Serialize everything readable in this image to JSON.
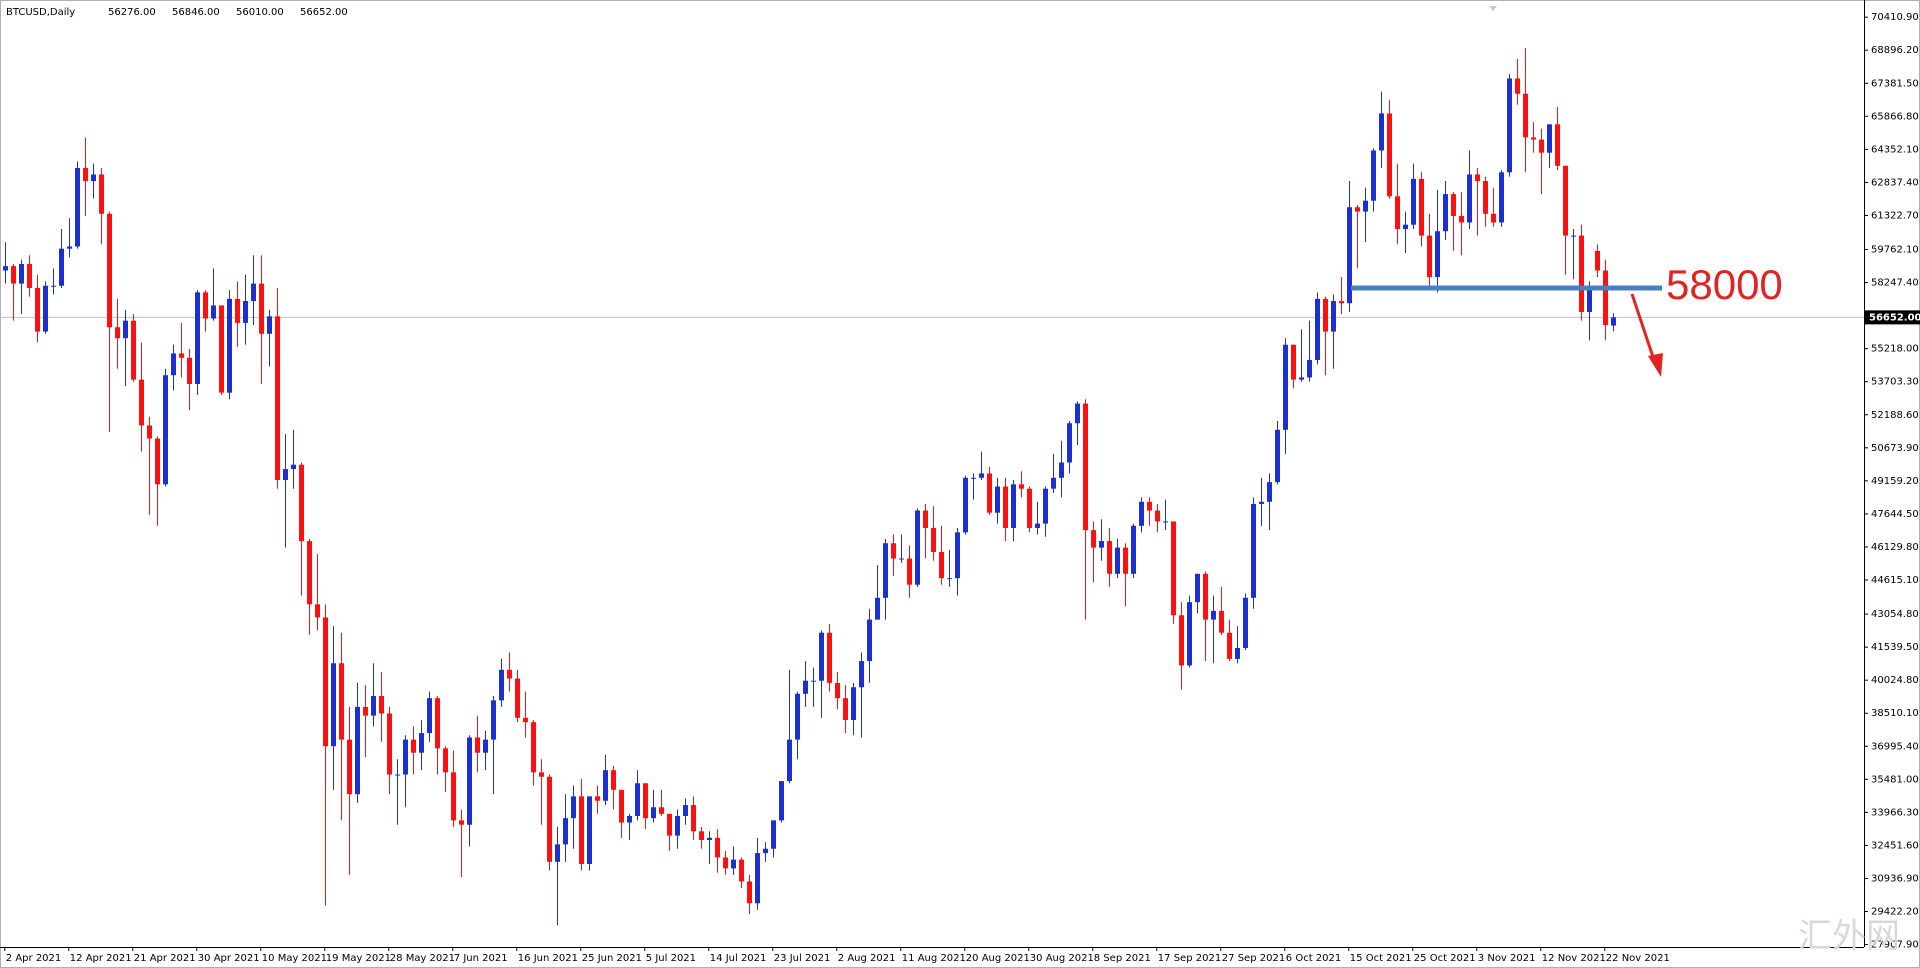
{
  "chart_data": {
    "type": "candlestick",
    "header": {
      "symbol": "BTCUSD,Daily",
      "ohlc": [
        {
          "value": 56276,
          "label": "56276.00"
        },
        {
          "value": 56846,
          "label": "56846.00"
        },
        {
          "value": 56010,
          "label": "56010.00"
        },
        {
          "value": 56652,
          "label": "56652.00"
        }
      ]
    },
    "up_color": "#1c2fd0",
    "down_color": "#ff1010",
    "xlim": [
      -0.6,
      232.4
    ],
    "xticks": [
      {
        "value": 0,
        "label": "2 Apr 2021"
      },
      {
        "value": 8,
        "label": "12 Apr 2021"
      },
      {
        "value": 16,
        "label": "21 Apr 2021"
      },
      {
        "value": 24,
        "label": "30 Apr 2021"
      },
      {
        "value": 32,
        "label": "10 May 2021"
      },
      {
        "value": 40,
        "label": "19 May 2021"
      },
      {
        "value": 48,
        "label": "28 May 2021"
      },
      {
        "value": 56,
        "label": "7 Jun 2021"
      },
      {
        "value": 64,
        "label": "16 Jun 2021"
      },
      {
        "value": 72,
        "label": "25 Jun 2021"
      },
      {
        "value": 80,
        "label": "5 Jul 2021"
      },
      {
        "value": 88,
        "label": "14 Jul 2021"
      },
      {
        "value": 96,
        "label": "23 Jul 2021"
      },
      {
        "value": 104,
        "label": "2 Aug 2021"
      },
      {
        "value": 112,
        "label": "11 Aug 2021"
      },
      {
        "value": 120,
        "label": "20 Aug 2021"
      },
      {
        "value": 128,
        "label": "30 Aug 2021"
      },
      {
        "value": 136,
        "label": "8 Sep 2021"
      },
      {
        "value": 144,
        "label": "17 Sep 2021"
      },
      {
        "value": 152,
        "label": "27 Sep 2021"
      },
      {
        "value": 160,
        "label": "6 Oct 2021"
      },
      {
        "value": 168,
        "label": "15 Oct 2021"
      },
      {
        "value": 176,
        "label": "25 Oct 2021"
      },
      {
        "value": 184,
        "label": "3 Nov 2021"
      },
      {
        "value": 192,
        "label": "12 Nov 2021"
      },
      {
        "value": 200,
        "label": "22 Nov 2021"
      }
    ],
    "ylim": [
      27796,
      71197
    ],
    "yticks": [
      {
        "value": 70410.9,
        "label": "70410.90"
      },
      {
        "value": 68896.2,
        "label": "68896.20"
      },
      {
        "value": 67381.5,
        "label": "67381.50"
      },
      {
        "value": 65866.8,
        "label": "65866.80"
      },
      {
        "value": 64352.1,
        "label": "64352.10"
      },
      {
        "value": 62837.4,
        "label": "62837.40"
      },
      {
        "value": 61322.7,
        "label": "61322.70"
      },
      {
        "value": 59762.1,
        "label": "59762.10"
      },
      {
        "value": 58247.4,
        "label": "58247.40"
      },
      {
        "value": 55218,
        "label": "55218.00"
      },
      {
        "value": 53703.3,
        "label": "53703.30"
      },
      {
        "value": 52188.6,
        "label": "52188.60"
      },
      {
        "value": 50673.9,
        "label": "50673.90"
      },
      {
        "value": 49159.2,
        "label": "49159.20"
      },
      {
        "value": 47644.5,
        "label": "47644.50"
      },
      {
        "value": 46129.8,
        "label": "46129.80"
      },
      {
        "value": 44615.1,
        "label": "44615.10"
      },
      {
        "value": 43054.8,
        "label": "43054.80"
      },
      {
        "value": 41539.5,
        "label": "41539.50"
      },
      {
        "value": 40024.8,
        "label": "40024.80"
      },
      {
        "value": 38510.1,
        "label": "38510.10"
      },
      {
        "value": 36995.4,
        "label": "36995.40"
      },
      {
        "value": 35481,
        "label": "35481.00"
      },
      {
        "value": 33966.3,
        "label": "33966.30"
      },
      {
        "value": 32451.6,
        "label": "32451.60"
      },
      {
        "value": 30936.9,
        "label": "30936.90"
      },
      {
        "value": 29422.2,
        "label": "29422.20"
      },
      {
        "value": 27907.9,
        "label": "27907.90"
      }
    ],
    "current_price": {
      "value": 56652,
      "label": "56652.00"
    },
    "annotation": {
      "level": 58000,
      "line_color": "#4a7fc0",
      "text_color": "#e32222"
    },
    "watermark": "汇外网",
    "candles": [
      [
        58800,
        60100,
        58200,
        59000
      ],
      [
        59000,
        59100,
        56500,
        58200
      ],
      [
        58200,
        59300,
        56800,
        59100
      ],
      [
        59100,
        59500,
        57600,
        58000
      ],
      [
        58000,
        58600,
        55500,
        56000
      ],
      [
        56000,
        58300,
        55900,
        58100
      ],
      [
        58100,
        58900,
        57700,
        58100
      ],
      [
        58100,
        60700,
        58000,
        59800
      ],
      [
        59800,
        61200,
        59400,
        59900
      ],
      [
        59900,
        63800,
        59800,
        63500
      ],
      [
        63500,
        64900,
        61300,
        62900
      ],
      [
        62900,
        63700,
        62100,
        63200
      ],
      [
        63200,
        63500,
        60000,
        61400
      ],
      [
        61400,
        61500,
        51400,
        56200
      ],
      [
        56200,
        57500,
        54300,
        55700
      ],
      [
        55700,
        57000,
        53500,
        56500
      ],
      [
        56500,
        56800,
        53700,
        53800
      ],
      [
        53800,
        55500,
        50500,
        51700
      ],
      [
        51700,
        52100,
        47600,
        51100
      ],
      [
        51100,
        51200,
        47100,
        49000
      ],
      [
        49000,
        54300,
        48900,
        54000
      ],
      [
        54000,
        55400,
        53300,
        55000
      ],
      [
        55000,
        56400,
        53900,
        54800
      ],
      [
        54800,
        55200,
        52400,
        53600
      ],
      [
        53600,
        57900,
        53100,
        57800
      ],
      [
        57800,
        57900,
        56000,
        56600
      ],
      [
        56600,
        58900,
        56500,
        57200
      ],
      [
        57200,
        57200,
        53100,
        53200
      ],
      [
        53200,
        57900,
        52900,
        57500
      ],
      [
        57500,
        58300,
        55300,
        56400
      ],
      [
        56400,
        58600,
        55400,
        57400
      ],
      [
        57400,
        59500,
        56300,
        58200
      ],
      [
        58200,
        59500,
        53600,
        55900
      ],
      [
        55900,
        57000,
        54400,
        56700
      ],
      [
        56700,
        58000,
        48800,
        49200
      ],
      [
        49200,
        51300,
        46100,
        49700
      ],
      [
        49700,
        51500,
        48800,
        49900
      ],
      [
        49900,
        50000,
        43900,
        46400
      ],
      [
        46400,
        46500,
        42100,
        43500
      ],
      [
        43500,
        45800,
        42300,
        42900
      ],
      [
        42900,
        43500,
        29700,
        37000
      ],
      [
        37000,
        42500,
        35000,
        40800
      ],
      [
        40800,
        42200,
        33600,
        37300
      ],
      [
        37300,
        38800,
        31100,
        34800
      ],
      [
        34800,
        39900,
        34400,
        38800
      ],
      [
        38800,
        39800,
        36500,
        38400
      ],
      [
        38400,
        40800,
        37900,
        39300
      ],
      [
        39300,
        40400,
        37200,
        38500
      ],
      [
        38500,
        38800,
        34800,
        35700
      ],
      [
        35700,
        36400,
        33400,
        35700
      ],
      [
        35700,
        37500,
        34200,
        37300
      ],
      [
        37300,
        37900,
        35700,
        36700
      ],
      [
        36700,
        38200,
        35900,
        37600
      ],
      [
        37600,
        39500,
        37200,
        39200
      ],
      [
        39200,
        39300,
        35700,
        36900
      ],
      [
        36900,
        37000,
        34900,
        35800
      ],
      [
        35800,
        36800,
        33300,
        33600
      ],
      [
        33600,
        34100,
        31000,
        33400
      ],
      [
        33400,
        37500,
        32400,
        37400
      ],
      [
        37400,
        38400,
        35800,
        36700
      ],
      [
        36700,
        37700,
        35900,
        37300
      ],
      [
        37300,
        39300,
        34800,
        39100
      ],
      [
        39100,
        41000,
        38800,
        40500
      ],
      [
        40500,
        41300,
        39500,
        40100
      ],
      [
        40100,
        40500,
        38100,
        38300
      ],
      [
        38300,
        39500,
        37400,
        38100
      ],
      [
        38100,
        38200,
        35200,
        35800
      ],
      [
        35800,
        36400,
        33400,
        35600
      ],
      [
        35600,
        35700,
        31300,
        31700
      ],
      [
        31700,
        33300,
        28800,
        32500
      ],
      [
        32500,
        34800,
        31700,
        33700
      ],
      [
        33700,
        35200,
        32300,
        34700
      ],
      [
        34700,
        35500,
        31300,
        31600
      ],
      [
        31600,
        34700,
        31300,
        34700
      ],
      [
        34700,
        35200,
        33900,
        34500
      ],
      [
        34500,
        36600,
        34300,
        35900
      ],
      [
        35900,
        36100,
        34100,
        35000
      ],
      [
        35000,
        35000,
        32800,
        33500
      ],
      [
        33500,
        33900,
        32700,
        33800
      ],
      [
        33800,
        35900,
        33600,
        35300
      ],
      [
        35300,
        35300,
        33200,
        33700
      ],
      [
        33700,
        35000,
        33500,
        34200
      ],
      [
        34200,
        35000,
        33800,
        33900
      ],
      [
        33900,
        33900,
        32200,
        32900
      ],
      [
        32900,
        34100,
        32300,
        33800
      ],
      [
        33800,
        34600,
        33400,
        34300
      ],
      [
        34300,
        34700,
        32700,
        33100
      ],
      [
        33100,
        33300,
        32300,
        32700
      ],
      [
        32700,
        33100,
        31600,
        32800
      ],
      [
        32800,
        33200,
        31200,
        31900
      ],
      [
        31900,
        32200,
        31100,
        31400
      ],
      [
        31400,
        32400,
        31100,
        31800
      ],
      [
        31800,
        31900,
        30500,
        30800
      ],
      [
        30800,
        31100,
        29300,
        29800
      ],
      [
        29800,
        32800,
        29500,
        32100
      ],
      [
        32100,
        32600,
        31700,
        32300
      ],
      [
        32300,
        33600,
        31900,
        33600
      ],
      [
        33600,
        35400,
        33500,
        35400
      ],
      [
        35400,
        40500,
        35300,
        37300
      ],
      [
        37300,
        39500,
        36400,
        39400
      ],
      [
        39400,
        40900,
        38800,
        40000
      ],
      [
        40000,
        40600,
        38800,
        40000
      ],
      [
        40000,
        42300,
        38300,
        42200
      ],
      [
        42200,
        42600,
        39500,
        39900
      ],
      [
        39900,
        40400,
        38700,
        39200
      ],
      [
        39200,
        39800,
        37600,
        38200
      ],
      [
        38200,
        39900,
        37500,
        39700
      ],
      [
        39700,
        41300,
        37400,
        40900
      ],
      [
        40900,
        43300,
        39900,
        42800
      ],
      [
        42800,
        45300,
        42800,
        43800
      ],
      [
        43800,
        46500,
        42800,
        46300
      ],
      [
        46300,
        46700,
        44800,
        45600
      ],
      [
        45600,
        46700,
        45400,
        45600
      ],
      [
        45600,
        46200,
        43800,
        44400
      ],
      [
        44400,
        47900,
        44300,
        47800
      ],
      [
        47800,
        48100,
        45600,
        47000
      ],
      [
        47000,
        48000,
        45500,
        45900
      ],
      [
        45900,
        47100,
        44400,
        44700
      ],
      [
        44700,
        46000,
        44300,
        44700
      ],
      [
        44700,
        47000,
        43900,
        46800
      ],
      [
        46800,
        49400,
        46700,
        49300
      ],
      [
        49300,
        49500,
        48300,
        49300
      ],
      [
        49300,
        50500,
        49200,
        49500
      ],
      [
        49500,
        49800,
        47600,
        47700
      ],
      [
        47700,
        49300,
        47200,
        48900
      ],
      [
        48900,
        49300,
        46400,
        47000
      ],
      [
        47000,
        49200,
        46400,
        49000
      ],
      [
        49000,
        49600,
        48400,
        48800
      ],
      [
        48800,
        48900,
        46800,
        47000
      ],
      [
        47000,
        48200,
        46700,
        47200
      ],
      [
        47200,
        48900,
        46600,
        48800
      ],
      [
        48800,
        50400,
        48600,
        49300
      ],
      [
        49300,
        51000,
        48400,
        50000
      ],
      [
        50000,
        51900,
        49500,
        51800
      ],
      [
        51800,
        52800,
        50800,
        52700
      ],
      [
        52700,
        52900,
        42800,
        46900
      ],
      [
        46900,
        47300,
        44500,
        46100
      ],
      [
        46100,
        47400,
        45500,
        46400
      ],
      [
        46400,
        47000,
        44300,
        44900
      ],
      [
        44900,
        46500,
        44700,
        46100
      ],
      [
        46100,
        46300,
        43400,
        44900
      ],
      [
        44900,
        47200,
        44700,
        47100
      ],
      [
        47100,
        48400,
        46800,
        48200
      ],
      [
        48200,
        48400,
        47100,
        47800
      ],
      [
        47800,
        48100,
        46800,
        47300
      ],
      [
        47300,
        48300,
        46900,
        47300
      ],
      [
        47300,
        47300,
        42600,
        43000
      ],
      [
        43000,
        43600,
        39600,
        40700
      ],
      [
        40700,
        43900,
        40600,
        43600
      ],
      [
        43600,
        44900,
        43100,
        44900
      ],
      [
        44900,
        45000,
        40900,
        42800
      ],
      [
        42800,
        43900,
        40800,
        43200
      ],
      [
        43200,
        44300,
        42100,
        42200
      ],
      [
        42200,
        42800,
        40900,
        41000
      ],
      [
        41000,
        42500,
        40800,
        41500
      ],
      [
        41500,
        44000,
        41400,
        43800
      ],
      [
        43800,
        48400,
        43300,
        48100
      ],
      [
        48100,
        49300,
        47100,
        48200
      ],
      [
        48200,
        49500,
        46900,
        49100
      ],
      [
        49100,
        51900,
        49000,
        51500
      ],
      [
        51500,
        55700,
        50400,
        55400
      ],
      [
        55400,
        55400,
        53400,
        53800
      ],
      [
        53800,
        56100,
        53700,
        53900
      ],
      [
        53900,
        56500,
        53700,
        54700
      ],
      [
        54700,
        57800,
        54500,
        57500
      ],
      [
        57500,
        57600,
        54000,
        56000
      ],
      [
        56000,
        57700,
        54300,
        57400
      ],
      [
        57400,
        58500,
        56800,
        57300
      ],
      [
        57300,
        62900,
        56900,
        61700
      ],
      [
        61700,
        61800,
        58900,
        61500
      ],
      [
        61500,
        62600,
        60100,
        62000
      ],
      [
        62000,
        64400,
        61500,
        64300
      ],
      [
        64300,
        67000,
        63500,
        66000
      ],
      [
        66000,
        66600,
        62100,
        62200
      ],
      [
        62200,
        63700,
        60000,
        60700
      ],
      [
        60700,
        61500,
        59600,
        60900
      ],
      [
        60900,
        63700,
        60700,
        63000
      ],
      [
        63000,
        63300,
        59900,
        60400
      ],
      [
        60400,
        61400,
        58100,
        58500
      ],
      [
        58500,
        62500,
        57800,
        60600
      ],
      [
        60600,
        62900,
        60200,
        62300
      ],
      [
        62300,
        62400,
        59700,
        61300
      ],
      [
        61300,
        62400,
        59500,
        61000
      ],
      [
        61000,
        64300,
        60700,
        63200
      ],
      [
        63200,
        63500,
        60400,
        62900
      ],
      [
        62900,
        63100,
        60800,
        61400
      ],
      [
        61400,
        62600,
        60800,
        61000
      ],
      [
        61000,
        63400,
        60800,
        63300
      ],
      [
        63300,
        67800,
        63100,
        67600
      ],
      [
        67600,
        68500,
        66400,
        66900
      ],
      [
        66900,
        69000,
        63300,
        64900
      ],
      [
        64900,
        65600,
        64200,
        64800
      ],
      [
        64800,
        65300,
        62300,
        64200
      ],
      [
        64200,
        65500,
        63500,
        65500
      ],
      [
        65500,
        66300,
        63400,
        63600
      ],
      [
        63600,
        63600,
        58600,
        60400
      ],
      [
        60400,
        60700,
        58400,
        60400
      ],
      [
        60400,
        60900,
        56500,
        56900
      ],
      [
        56900,
        58300,
        55600,
        58100
      ],
      [
        59700,
        60000,
        58500,
        58800
      ],
      [
        58800,
        59300,
        55600,
        56300
      ],
      [
        56276,
        56846,
        56010,
        56652
      ]
    ]
  }
}
